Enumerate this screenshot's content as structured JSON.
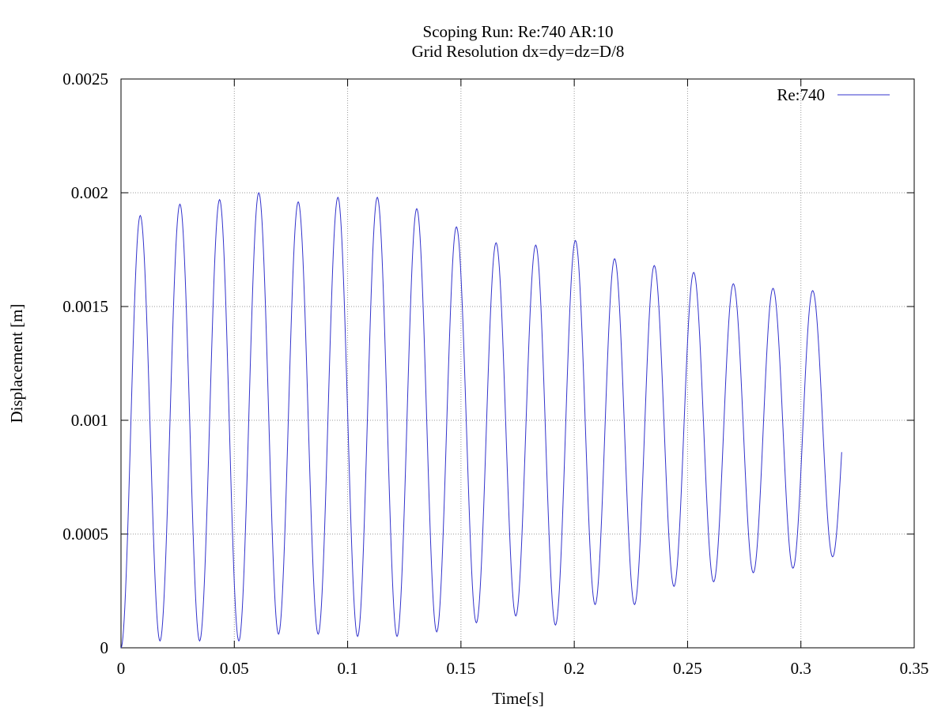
{
  "chart_data": {
    "type": "line",
    "title": "Scoping Run: Re:740  AR:10",
    "subtitle": "Grid Resolution dx=dy=dz=D/8",
    "xlabel": "Time[s]",
    "ylabel": "Displacement [m]",
    "xlim": [
      0,
      0.35
    ],
    "ylim": [
      0,
      0.0025
    ],
    "x_ticks": [
      "0",
      "0.05",
      "0.1",
      "0.15",
      "0.2",
      "0.25",
      "0.3",
      "0.35"
    ],
    "y_ticks": [
      "0",
      "0.0005",
      "0.001",
      "0.0015",
      "0.002",
      "0.0025"
    ],
    "grid": true,
    "legend_position": "top-right",
    "series": [
      {
        "name": "Re:740",
        "color": "#3333cc",
        "peaks": [
          {
            "t": 0.0085,
            "y": 0.0019
          },
          {
            "t": 0.026,
            "y": 0.00195
          },
          {
            "t": 0.0435,
            "y": 0.00197
          },
          {
            "t": 0.0608,
            "y": 0.002
          },
          {
            "t": 0.0782,
            "y": 0.00196
          },
          {
            "t": 0.0957,
            "y": 0.00198
          },
          {
            "t": 0.1131,
            "y": 0.00198
          },
          {
            "t": 0.1305,
            "y": 0.00193
          },
          {
            "t": 0.148,
            "y": 0.00185
          },
          {
            "t": 0.1655,
            "y": 0.00178
          },
          {
            "t": 0.183,
            "y": 0.00177
          },
          {
            "t": 0.2005,
            "y": 0.00179
          },
          {
            "t": 0.2178,
            "y": 0.00171
          },
          {
            "t": 0.2353,
            "y": 0.00168
          },
          {
            "t": 0.2527,
            "y": 0.00165
          },
          {
            "t": 0.2702,
            "y": 0.0016
          },
          {
            "t": 0.2877,
            "y": 0.00158
          },
          {
            "t": 0.3052,
            "y": 0.00157
          }
        ],
        "troughs": [
          {
            "t": 0.0,
            "y": 0.0
          },
          {
            "t": 0.0172,
            "y": 3e-05
          },
          {
            "t": 0.0347,
            "y": 3e-05
          },
          {
            "t": 0.052,
            "y": 3e-05
          },
          {
            "t": 0.0695,
            "y": 6e-05
          },
          {
            "t": 0.087,
            "y": 6e-05
          },
          {
            "t": 0.1044,
            "y": 5e-05
          },
          {
            "t": 0.1218,
            "y": 5e-05
          },
          {
            "t": 0.1393,
            "y": 7e-05
          },
          {
            "t": 0.1568,
            "y": 0.00011
          },
          {
            "t": 0.1742,
            "y": 0.00014
          },
          {
            "t": 0.1917,
            "y": 0.0001
          },
          {
            "t": 0.2092,
            "y": 0.00019
          },
          {
            "t": 0.2266,
            "y": 0.00019
          },
          {
            "t": 0.244,
            "y": 0.00027
          },
          {
            "t": 0.2615,
            "y": 0.00029
          },
          {
            "t": 0.279,
            "y": 0.00033
          },
          {
            "t": 0.2965,
            "y": 0.00035
          },
          {
            "t": 0.314,
            "y": 0.0004
          }
        ],
        "end": {
          "t": 0.318,
          "y": 0.00086
        }
      }
    ]
  }
}
